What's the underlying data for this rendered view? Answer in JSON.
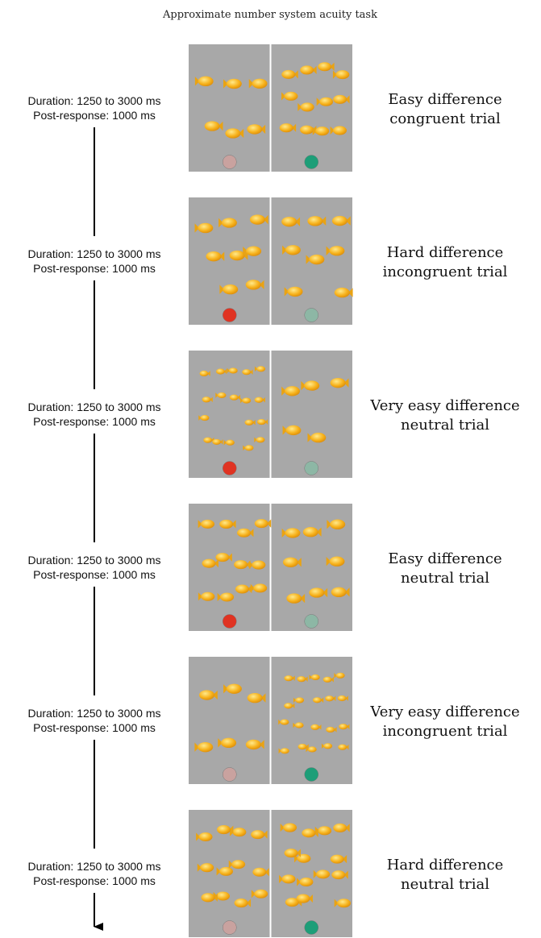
{
  "title": "Approximate number system acuity task",
  "trials": [
    {
      "duration": "Duration: 1250 to 3000 ms",
      "post_response": "Post-response: 1000 ms",
      "label": [
        "Easy difference",
        "congruent trial"
      ]
    },
    {
      "duration": "Duration: 1250 to 3000 ms",
      "post_response": "Post-response: 1000 ms",
      "label": [
        "Hard difference",
        "incongruent trial"
      ]
    },
    {
      "duration": "Duration: 1250 to 3000 ms",
      "post_response": "Post-response: 1000 ms",
      "label": [
        "Very easy difference",
        "neutral trial"
      ]
    },
    {
      "duration": "Duration: 1250 to 3000 ms",
      "post_response": "Post-response: 1000 ms",
      "label": [
        "Easy difference",
        "neutral trial"
      ]
    },
    {
      "duration": "Duration: 1250 to 3000 ms",
      "post_response": "Post-response: 1000 ms",
      "label": [
        "Very easy difference",
        "incongruent trial"
      ]
    },
    {
      "duration": "Duration: 1250 to 3000 ms",
      "post_response": "Post-response: 1000 ms",
      "label": [
        "Hard difference",
        "neutral trial"
      ]
    }
  ]
}
